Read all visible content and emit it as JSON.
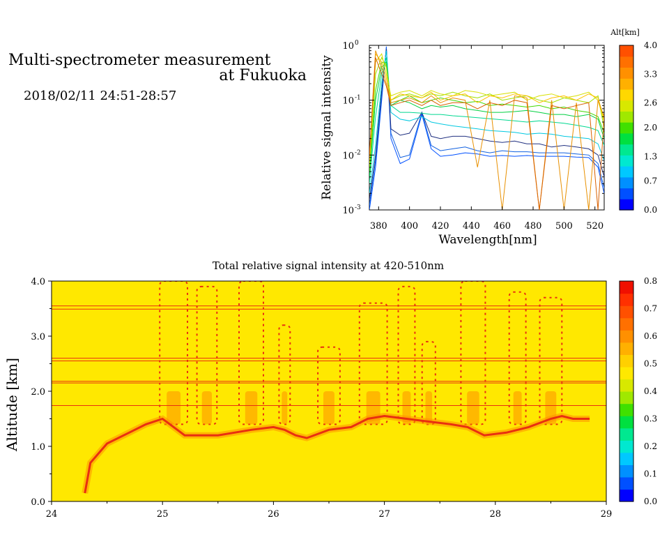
{
  "page": {
    "title_line1": "Multi-spectrometer measurement",
    "title_line2": "at Fukuoka",
    "date_range": "2018/02/11 24:51-28:57"
  },
  "colors": {
    "yellow_bg": "#ffe800",
    "orange": "#f0a000",
    "red": "#e83010",
    "frame": "#000000"
  },
  "chart_data": [
    {
      "type": "line",
      "xlabel": "Wavelength[nm]",
      "ylabel": "Relative signal intensity",
      "x_ticks": [
        "380",
        "400",
        "420",
        "440",
        "460",
        "480",
        "500",
        "520"
      ],
      "y_ticks": [
        "10",
        "10",
        "10",
        "10"
      ],
      "y_tick_exponents": [
        "-3",
        "-2",
        "-1",
        "0"
      ],
      "xlim": [
        374,
        526
      ],
      "ylim_log10": [
        -3,
        0
      ],
      "y_scale": "log",
      "colorbar": {
        "label": "Alt[km]",
        "ticks": [
          "0.0",
          "0.7",
          "1.3",
          "2.0",
          "2.6",
          "3.3",
          "4.0"
        ],
        "range": [
          0.0,
          4.0
        ],
        "colors": [
          "#0000ff",
          "#0050ff",
          "#0090ff",
          "#00c8ff",
          "#00e8d0",
          "#00e890",
          "#00e040",
          "#40e000",
          "#a0e800",
          "#d8e800",
          "#ffd800",
          "#ffb000",
          "#ff9000",
          "#ff7000",
          "#ff5000"
        ]
      },
      "x": [
        374,
        378,
        382,
        385,
        388,
        394,
        400,
        408,
        414,
        420,
        428,
        436,
        444,
        452,
        460,
        468,
        476,
        484,
        492,
        500,
        508,
        516,
        522,
        526
      ],
      "series": [
        {
          "color": "#0050ff",
          "values": [
            0.001,
            0.006,
            0.1,
            0.95,
            0.02,
            0.007,
            0.0085,
            0.055,
            0.013,
            0.0095,
            0.01,
            0.011,
            0.0105,
            0.0095,
            0.0098,
            0.0095,
            0.0098,
            0.0095,
            0.0095,
            0.0095,
            0.0092,
            0.009,
            0.006,
            0.002
          ]
        },
        {
          "color": "#1060e0",
          "values": [
            0.0012,
            0.008,
            0.12,
            0.9,
            0.025,
            0.009,
            0.01,
            0.06,
            0.015,
            0.012,
            0.013,
            0.014,
            0.012,
            0.011,
            0.012,
            0.0115,
            0.0115,
            0.011,
            0.011,
            0.011,
            0.0105,
            0.01,
            0.007,
            0.0025
          ]
        },
        {
          "color": "#203080",
          "values": [
            0.0015,
            0.01,
            0.15,
            0.85,
            0.03,
            0.023,
            0.025,
            0.06,
            0.022,
            0.02,
            0.022,
            0.022,
            0.02,
            0.018,
            0.017,
            0.018,
            0.016,
            0.016,
            0.014,
            0.015,
            0.014,
            0.013,
            0.01,
            0.004
          ]
        },
        {
          "color": "#00c8e0",
          "values": [
            0.002,
            0.015,
            0.2,
            0.8,
            0.06,
            0.045,
            0.042,
            0.05,
            0.04,
            0.037,
            0.034,
            0.032,
            0.03,
            0.028,
            0.027,
            0.026,
            0.024,
            0.025,
            0.024,
            0.022,
            0.021,
            0.02,
            0.016,
            0.008
          ]
        },
        {
          "color": "#00d890",
          "values": [
            0.003,
            0.05,
            0.3,
            0.6,
            0.08,
            0.06,
            0.06,
            0.058,
            0.055,
            0.055,
            0.052,
            0.05,
            0.048,
            0.046,
            0.044,
            0.042,
            0.04,
            0.042,
            0.04,
            0.038,
            0.035,
            0.032,
            0.028,
            0.015
          ]
        },
        {
          "color": "#00d040",
          "values": [
            0.004,
            0.1,
            0.4,
            0.5,
            0.08,
            0.1,
            0.09,
            0.07,
            0.08,
            0.075,
            0.08,
            0.07,
            0.065,
            0.06,
            0.06,
            0.062,
            0.065,
            0.06,
            0.055,
            0.055,
            0.05,
            0.055,
            0.045,
            0.02
          ]
        },
        {
          "color": "#40d800",
          "values": [
            0.005,
            0.15,
            0.5,
            0.45,
            0.09,
            0.1,
            0.12,
            0.09,
            0.1,
            0.11,
            0.1,
            0.09,
            0.095,
            0.08,
            0.085,
            0.08,
            0.075,
            0.08,
            0.07,
            0.075,
            0.065,
            0.06,
            0.05,
            0.025
          ]
        },
        {
          "color": "#a0e000",
          "values": [
            0.006,
            0.3,
            0.6,
            0.4,
            0.1,
            0.12,
            0.13,
            0.11,
            0.13,
            0.12,
            0.14,
            0.12,
            0.11,
            0.13,
            0.1,
            0.11,
            0.12,
            0.1,
            0.09,
            0.11,
            0.1,
            0.09,
            0.12,
            0.03
          ]
        },
        {
          "color": "#d8e000",
          "values": [
            0.007,
            0.5,
            0.7,
            0.3,
            0.12,
            0.14,
            0.15,
            0.12,
            0.15,
            0.13,
            0.12,
            0.15,
            0.14,
            0.12,
            0.13,
            0.14,
            0.1,
            0.12,
            0.13,
            0.11,
            0.12,
            0.14,
            0.1,
            0.04
          ]
        },
        {
          "color": "#ffc000",
          "values": [
            0.008,
            0.7,
            0.5,
            0.25,
            0.1,
            0.13,
            0.12,
            0.11,
            0.14,
            0.1,
            0.12,
            0.13,
            0.09,
            0.12,
            0.11,
            0.13,
            0.12,
            0.09,
            0.11,
            0.12,
            0.1,
            0.13,
            0.11,
            0.045
          ]
        },
        {
          "color": "#e89000",
          "values": [
            0.009,
            0.8,
            0.4,
            0.2,
            0.09,
            0.1,
            0.11,
            0.09,
            0.12,
            0.09,
            0.11,
            0.1,
            0.006,
            0.1,
            0.0009,
            0.12,
            0.11,
            0.0009,
            0.1,
            0.0009,
            0.09,
            0.0009,
            0.1,
            0.05
          ]
        },
        {
          "color": "#d86000",
          "values": [
            0.01,
            0.6,
            0.3,
            0.18,
            0.08,
            0.09,
            0.1,
            0.08,
            0.1,
            0.08,
            0.09,
            0.09,
            0.07,
            0.09,
            0.08,
            0.1,
            0.09,
            0.0009,
            0.08,
            0.07,
            0.08,
            0.09,
            0.0009,
            0.05
          ]
        }
      ]
    },
    {
      "type": "heatmap",
      "title": "Total relative signal intensity at 420-510nm",
      "xlabel": "",
      "ylabel": "Altitude [km]",
      "x_ticks": [
        "24",
        "25",
        "26",
        "27",
        "28",
        "29"
      ],
      "y_ticks": [
        "0.0",
        "1.0",
        "2.0",
        "3.0",
        "4.0"
      ],
      "xlim": [
        24,
        29
      ],
      "ylim": [
        0,
        4
      ],
      "colorbar": {
        "ticks": [
          "0.0",
          "0.1",
          "0.2",
          "0.3",
          "0.4",
          "0.5",
          "0.6",
          "0.7",
          "0.8"
        ],
        "range": [
          0.0,
          0.8
        ],
        "colors": [
          "#0000ff",
          "#0050ff",
          "#0090ff",
          "#00c8ff",
          "#00e8d0",
          "#00e890",
          "#00e040",
          "#40e000",
          "#a0e800",
          "#d8e800",
          "#ffe800",
          "#ffd000",
          "#ffb000",
          "#ff9000",
          "#ff7000",
          "#ff5000",
          "#ff3000",
          "#f01000"
        ]
      },
      "cloud_base_km": {
        "x": [
          24.3,
          24.35,
          24.5,
          24.7,
          24.85,
          25.0,
          25.2,
          25.5,
          25.8,
          26.0,
          26.1,
          26.2,
          26.3,
          26.5,
          26.7,
          26.85,
          27.0,
          27.2,
          27.4,
          27.6,
          27.75,
          27.9,
          28.1,
          28.3,
          28.5,
          28.6,
          28.7,
          28.85
        ],
        "y": [
          0.15,
          0.7,
          1.05,
          1.25,
          1.4,
          1.5,
          1.2,
          1.2,
          1.3,
          1.35,
          1.3,
          1.2,
          1.15,
          1.3,
          1.35,
          1.5,
          1.55,
          1.5,
          1.45,
          1.4,
          1.35,
          1.2,
          1.25,
          1.35,
          1.5,
          1.55,
          1.5,
          1.5
        ]
      },
      "cloud_columns_km": {
        "x": [
          25.1,
          25.4,
          25.8,
          26.1,
          26.5,
          26.9,
          27.2,
          27.4,
          27.8,
          28.2,
          28.5
        ],
        "top": [
          4.0,
          3.9,
          4.0,
          3.2,
          2.8,
          3.6,
          3.9,
          2.9,
          4.0,
          3.8,
          3.7
        ],
        "width": [
          0.25,
          0.18,
          0.22,
          0.1,
          0.2,
          0.25,
          0.15,
          0.12,
          0.22,
          0.15,
          0.2
        ]
      },
      "horizontal_lines_km": [
        3.49,
        3.55,
        2.6,
        2.55,
        2.18,
        2.15,
        1.74,
        4.0
      ]
    }
  ]
}
